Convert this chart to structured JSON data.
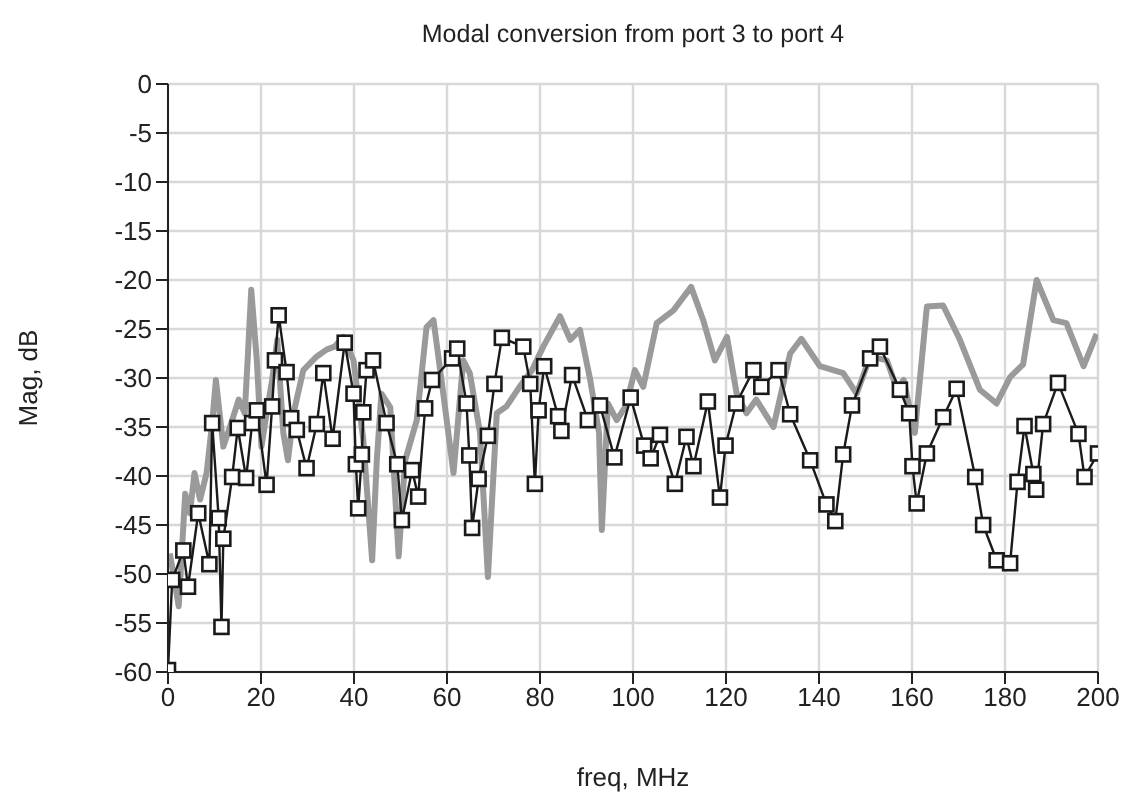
{
  "chart_data": {
    "type": "line",
    "title": "Modal conversion from port 3 to port 4",
    "xlabel": "freq, MHz",
    "ylabel": "Mag, dB",
    "xlim": [
      0,
      200
    ],
    "xticks": [
      0,
      20,
      40,
      60,
      80,
      100,
      120,
      140,
      160,
      180,
      200
    ],
    "ylim": [
      -60,
      0
    ],
    "yticks": [
      0,
      -5,
      -10,
      -15,
      -20,
      -25,
      -30,
      -35,
      -40,
      -45,
      -50,
      -55,
      -60
    ],
    "grid": true,
    "line_style": "solid",
    "series": [
      {
        "color": "#9a9a9a",
        "marker": "none",
        "x": [
          0.4,
          2.3,
          3.7,
          4.7,
          5.7,
          6.9,
          8.3,
          9.5,
          10.3,
          11.9,
          13.8,
          15.2,
          16.5,
          17.2,
          17.9,
          19.1,
          20.1,
          21.2,
          22.4,
          23.5,
          24.8,
          25.8,
          27,
          29.1,
          32,
          34.1,
          35.8,
          37.7,
          39.9,
          42,
          43.9,
          44.9,
          45.9,
          47.8,
          49.6,
          51,
          53.5,
          55.6,
          57.1,
          59.2,
          61.4,
          63.5,
          64.9,
          67.1,
          68.8,
          70.7,
          72.8,
          75.6,
          78.3,
          80.7,
          84.3,
          86.5,
          88.6,
          90.8,
          92.7,
          93.3,
          94.6,
          96.5,
          98.4,
          100.4,
          102.2,
          105.1,
          108.7,
          112.5,
          115.1,
          117.6,
          120.2,
          122.3,
          124.4,
          126.5,
          130.2,
          133.8,
          136.2,
          140.2,
          145.2,
          148.1,
          151,
          154.6,
          156.8,
          158.2,
          160.6,
          163.2,
          166.7,
          170.3,
          174.6,
          178.2,
          181.1,
          183.9,
          186.8,
          190.4,
          193.2,
          196.9,
          199.7
        ],
        "values": [
          -47.9,
          -53.3,
          -41.8,
          -43.8,
          -39.7,
          -42.4,
          -39.7,
          -34.6,
          -30.2,
          -37,
          -34.3,
          -32.2,
          -33.6,
          -27.5,
          -21,
          -28.2,
          -37,
          -33.6,
          -30.2,
          -26.1,
          -35.6,
          -38.4,
          -33.6,
          -29.2,
          -27.8,
          -27.1,
          -26.8,
          -25.8,
          -28.2,
          -36.3,
          -48.6,
          -38.4,
          -31.6,
          -33,
          -48.2,
          -38.4,
          -34.3,
          -24.8,
          -24.1,
          -31.6,
          -39.7,
          -28.2,
          -29.5,
          -35.6,
          -50.3,
          -33.6,
          -32.9,
          -30.9,
          -29.2,
          -26.8,
          -23.7,
          -26.1,
          -25.1,
          -30.2,
          -35.6,
          -45.5,
          -32.6,
          -34.3,
          -32.9,
          -29.2,
          -30.9,
          -24.4,
          -23.1,
          -20.7,
          -24.1,
          -28.2,
          -25.8,
          -31.6,
          -33.6,
          -32.2,
          -35,
          -27.5,
          -26,
          -28.8,
          -29.5,
          -31.6,
          -27.8,
          -28.2,
          -31.2,
          -30.2,
          -35.6,
          -22.7,
          -22.6,
          -26.1,
          -31.2,
          -32.6,
          -29.9,
          -28.6,
          -20,
          -24.1,
          -24.4,
          -28.8,
          -25.5
        ]
      },
      {
        "color": "#1a1a1a",
        "marker": "square",
        "x": [
          0,
          0.9,
          3.3,
          4.3,
          6.5,
          8.9,
          9.5,
          10.9,
          11.5,
          11.9,
          13.8,
          15,
          16.8,
          18.1,
          19.1,
          21.2,
          22.4,
          23,
          23.8,
          25.5,
          26.5,
          27.7,
          29.8,
          32,
          33.4,
          35.4,
          38,
          39.9,
          40.4,
          40.9,
          41.7,
          42,
          42.7,
          44.1,
          47,
          49.3,
          50.3,
          52.5,
          53.8,
          55.3,
          56.8,
          61.1,
          62.2,
          64.2,
          64.8,
          65.4,
          66.8,
          68.8,
          70.2,
          71.8,
          76.4,
          77.9,
          78.9,
          79.7,
          80.9,
          83.9,
          84.6,
          86.9,
          90.3,
          92.9,
          96,
          99.5,
          102.4,
          103.8,
          105.8,
          109,
          111.5,
          113,
          116.1,
          118.7,
          119.9,
          122.2,
          125.9,
          127.6,
          131.3,
          133.8,
          138.1,
          141.6,
          143.5,
          145.2,
          147.1,
          151,
          153.1,
          157.4,
          159.4,
          160.1,
          161,
          163.2,
          166.7,
          169.6,
          173.6,
          175.3,
          178.2,
          181.1,
          182.7,
          184.2,
          186.1,
          186.7,
          188.2,
          191.4,
          195.8,
          197.1,
          200
        ],
        "values": [
          -59.8,
          -50.6,
          -47.6,
          -51.3,
          -43.8,
          -49,
          -34.6,
          -44.3,
          -55.4,
          -46.4,
          -40.1,
          -35.1,
          -40.2,
          -34.6,
          -33.3,
          -40.9,
          -32.9,
          -28.2,
          -23.6,
          -29.4,
          -34.1,
          -35.3,
          -39.2,
          -34.7,
          -29.5,
          -36.2,
          -26.4,
          -31.6,
          -38.8,
          -43.3,
          -37.8,
          -33.5,
          -29.2,
          -28.2,
          -34.6,
          -38.8,
          -44.5,
          -39.4,
          -42.1,
          -33.1,
          -30.2,
          -28,
          -27,
          -32.6,
          -37.9,
          -45.3,
          -40.3,
          -35.9,
          -30.6,
          -25.9,
          -26.8,
          -30.6,
          -40.8,
          -33.3,
          -28.8,
          -33.9,
          -35.4,
          -29.7,
          -34.3,
          -32.8,
          -38.1,
          -32,
          -36.9,
          -38.2,
          -35.8,
          -40.8,
          -36,
          -39,
          -32.4,
          -42.2,
          -36.9,
          -32.6,
          -29.2,
          -30.9,
          -29.2,
          -33.7,
          -38.4,
          -42.9,
          -44.6,
          -37.8,
          -32.8,
          -28,
          -26.8,
          -31.2,
          -33.6,
          -39,
          -42.8,
          -37.7,
          -34,
          -31.1,
          -40.1,
          -45,
          -48.6,
          -48.9,
          -40.6,
          -34.9,
          -39.8,
          -41.4,
          -34.7,
          -30.5,
          -35.7,
          -40.1,
          -37.7
        ]
      }
    ]
  }
}
